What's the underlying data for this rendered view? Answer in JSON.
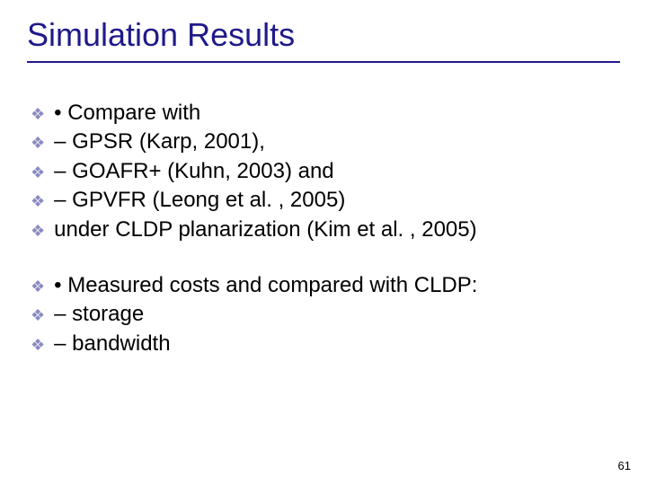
{
  "title": "Simulation Results",
  "title_color": "#1f1a8a",
  "rule_color": "#1f1a8a",
  "bullet_color": "#8a8ac0",
  "body_color": "#000000",
  "background_color": "#ffffff",
  "title_fontsize": 36,
  "body_fontsize": 24,
  "bullet_glyph": "❖",
  "blocks": [
    {
      "items": [
        "• Compare with",
        "– GPSR (Karp, 2001),",
        "– GOAFR+ (Kuhn, 2003) and",
        "– GPVFR (Leong et al. , 2005)",
        "under CLDP planarization (Kim et al. , 2005)"
      ]
    },
    {
      "items": [
        "• Measured costs and compared with CLDP:",
        "– storage",
        "– bandwidth"
      ]
    }
  ],
  "page_number": "61"
}
